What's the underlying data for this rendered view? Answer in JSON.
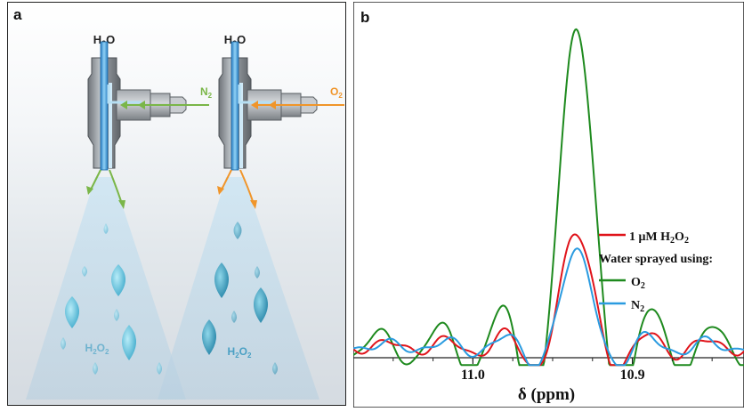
{
  "panel_a": {
    "label": "a",
    "left_nozzle": {
      "top_label": "H2O",
      "gas_label": "N2",
      "gas_color": "#7ab648",
      "product_label": "H2O2"
    },
    "right_nozzle": {
      "top_label": "H2O",
      "gas_label": "O2",
      "gas_color": "#f0952a",
      "product_label": "H2O2"
    }
  },
  "panel_b": {
    "label": "b",
    "legend": {
      "ref_label": "1 μM H2O2",
      "heading": "Water sprayed using:",
      "o2_label": "O2",
      "n2_label": "N2"
    }
  },
  "chart_data": {
    "type": "line",
    "xlabel": "δ (ppm)",
    "x_reversed": true,
    "xlim": [
      11.075,
      10.83
    ],
    "x_ticks": [
      11.0,
      10.9
    ],
    "x_tick_labels": [
      "11.0",
      "10.9"
    ],
    "ylim": [
      0,
      1.0
    ],
    "grid": false,
    "legend_position": "right",
    "series": [
      {
        "name": "1 μM H2O2",
        "color": "#e0141b",
        "peak_center": 10.935,
        "peak_height": 0.36
      },
      {
        "name": "O2",
        "color": "#1e8a1e",
        "peak_center": 10.935,
        "peak_height": 1.0
      },
      {
        "name": "N2",
        "color": "#2a9be0",
        "peak_center": 10.935,
        "peak_height": 0.3
      }
    ]
  }
}
